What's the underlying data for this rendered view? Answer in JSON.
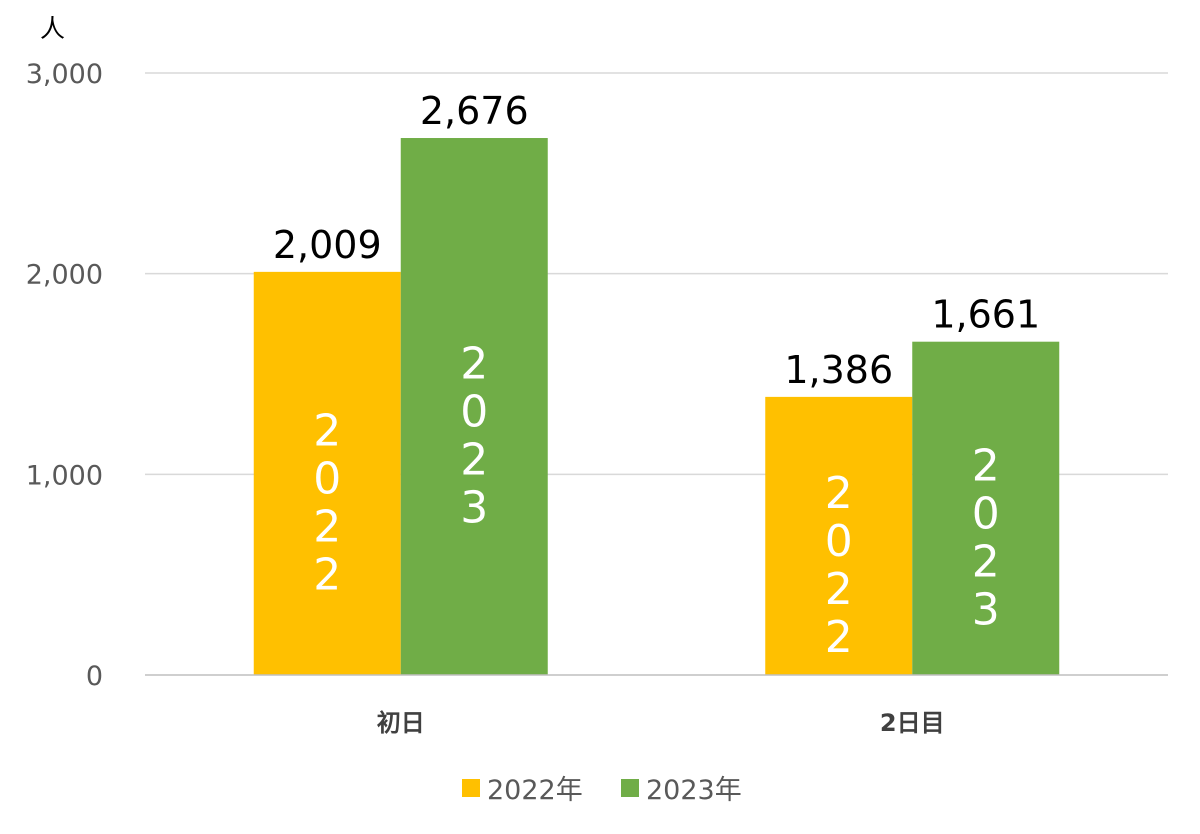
{
  "chart_data": {
    "type": "bar",
    "unit_label": "人",
    "categories": [
      "初日",
      "2日目"
    ],
    "series": [
      {
        "name": "2022年",
        "values": [
          2009,
          1386
        ],
        "value_labels": [
          "2,009",
          "1,386"
        ],
        "inbar_text": "2022",
        "color": "#FFC000"
      },
      {
        "name": "2023年",
        "values": [
          2676,
          1661
        ],
        "value_labels": [
          "2,676",
          "1,661"
        ],
        "inbar_text": "2023",
        "color": "#70AD47"
      }
    ],
    "ylim": [
      0,
      3000
    ],
    "yticks": [
      0,
      1000,
      2000,
      3000
    ],
    "ytick_labels": [
      "0",
      "1,000",
      "2,000",
      "3,000"
    ],
    "grid": true,
    "legend_position": "bottom"
  }
}
